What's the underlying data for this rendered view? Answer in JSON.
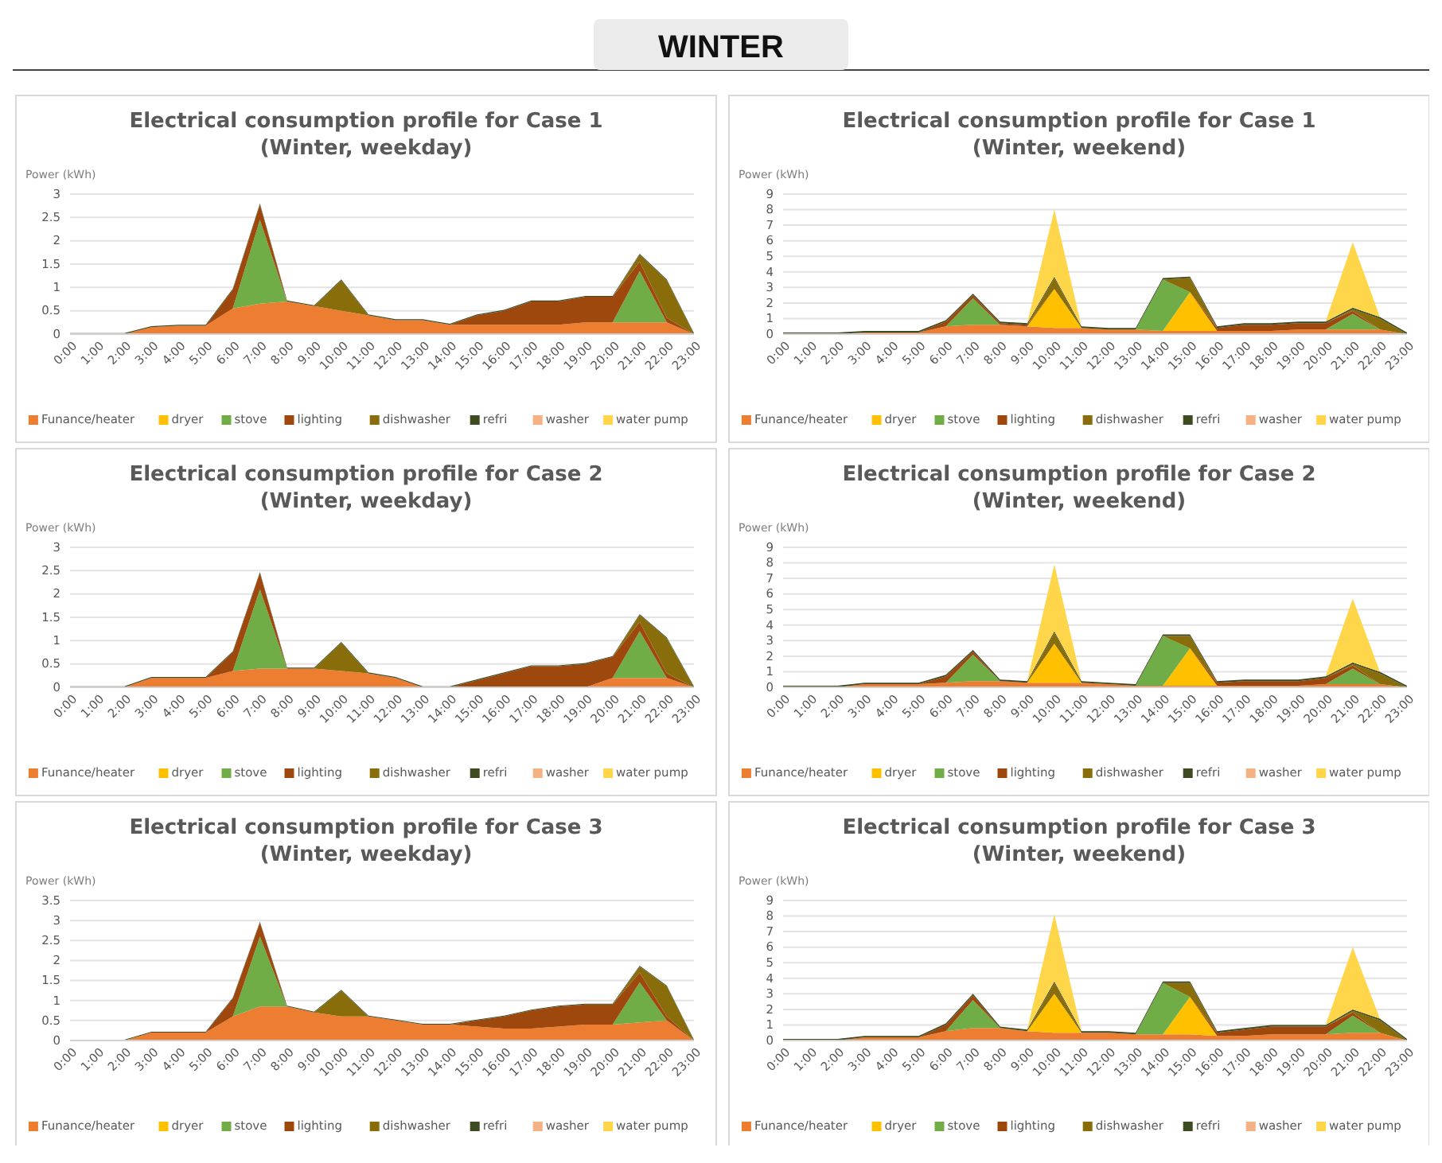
{
  "chart_data": [
    {
      "type": "other",
      "title": "WINTER"
    },
    {
      "type": "area",
      "stacked": true,
      "title": "Electrical consumption profile for Case 1",
      "subtitle": "(Winter, weekday)",
      "ylabel": "Power (kWh)",
      "legend": "bottom",
      "grid": "y",
      "ylim": [
        0,
        3
      ],
      "yticks": [
        0,
        0.5,
        1,
        1.5,
        2,
        2.5,
        3
      ],
      "categories": [
        "0:00",
        "1:00",
        "2:00",
        "3:00",
        "4:00",
        "5:00",
        "6:00",
        "7:00",
        "8:00",
        "9:00",
        "10:00",
        "11:00",
        "12:00",
        "13:00",
        "14:00",
        "15:00",
        "16:00",
        "17:00",
        "18:00",
        "19:00",
        "20:00",
        "21:00",
        "22:00",
        "23:00"
      ],
      "series": [
        {
          "name": "Funance/heater",
          "color": "#ed7d31",
          "values": [
            null,
            null,
            0,
            0.15,
            0.18,
            0.18,
            0.55,
            0.65,
            0.7,
            0.6,
            0.5,
            0.4,
            0.3,
            0.3,
            0.2,
            0.2,
            0.2,
            0.2,
            0.2,
            0.25,
            0.25,
            0.25,
            0.25,
            0
          ]
        },
        {
          "name": "dryer",
          "color": "#ffc000",
          "values": [
            null,
            null,
            null,
            null,
            null,
            null,
            null,
            null,
            null,
            null,
            null,
            null,
            null,
            null,
            null,
            null,
            null,
            null,
            null,
            null,
            null,
            null,
            null,
            null
          ]
        },
        {
          "name": "stove",
          "color": "#70ad47",
          "values": [
            null,
            null,
            null,
            null,
            null,
            null,
            0,
            1.8,
            0,
            null,
            null,
            null,
            null,
            null,
            null,
            null,
            null,
            null,
            null,
            null,
            0,
            1.1,
            0,
            null
          ]
        },
        {
          "name": "lighting",
          "color": "#9e480e",
          "values": [
            null,
            null,
            null,
            null,
            null,
            0,
            0.4,
            0.33,
            0,
            null,
            null,
            null,
            null,
            null,
            0,
            0.2,
            0.3,
            0.5,
            0.5,
            0.55,
            0.55,
            0.2,
            0.1,
            0
          ]
        },
        {
          "name": "dishwasher",
          "color": "#8a6d0b",
          "values": [
            null,
            null,
            null,
            null,
            null,
            null,
            null,
            null,
            null,
            0,
            0.65,
            0,
            null,
            null,
            null,
            null,
            null,
            null,
            null,
            null,
            0,
            0.15,
            0.8,
            0
          ]
        },
        {
          "name": "refri",
          "color": "#3d4a22",
          "values": [
            0.02,
            0.02,
            0.02,
            0.02,
            0.02,
            0.02,
            0.02,
            0.02,
            0.02,
            0.02,
            0.02,
            0.02,
            0.02,
            0.02,
            0.02,
            0.02,
            0.02,
            0.02,
            0.02,
            0.02,
            0.02,
            0.02,
            0.02,
            0.02
          ]
        },
        {
          "name": "washer",
          "color": "#f4b183",
          "values": [
            null,
            null,
            null,
            null,
            null,
            null,
            null,
            null,
            null,
            null,
            null,
            null,
            null,
            null,
            null,
            null,
            null,
            null,
            null,
            null,
            null,
            null,
            null,
            null
          ]
        },
        {
          "name": "water pump",
          "color": "#ffd54a",
          "values": [
            null,
            null,
            null,
            null,
            null,
            null,
            null,
            null,
            null,
            null,
            null,
            null,
            null,
            null,
            null,
            null,
            null,
            null,
            null,
            null,
            null,
            null,
            null,
            null
          ]
        }
      ]
    },
    {
      "type": "area",
      "stacked": true,
      "title": "Electrical consumption profile for Case 1",
      "subtitle": "(Winter, weekend)",
      "ylabel": "Power (kWh)",
      "legend": "bottom",
      "grid": "y",
      "ylim": [
        0,
        9
      ],
      "yticks": [
        0,
        1,
        2,
        3,
        4,
        5,
        6,
        7,
        8,
        9
      ],
      "categories": [
        "0:00",
        "1:00",
        "2:00",
        "3:00",
        "4:00",
        "5:00",
        "6:00",
        "7:00",
        "8:00",
        "9:00",
        "10:00",
        "11:00",
        "12:00",
        "13:00",
        "14:00",
        "15:00",
        "16:00",
        "17:00",
        "18:00",
        "19:00",
        "20:00",
        "21:00",
        "22:00",
        "23:00"
      ],
      "series": [
        {
          "name": "Funance/heater",
          "color": "#ed7d31",
          "values": [
            null,
            null,
            0,
            0.1,
            0.1,
            0.1,
            0.5,
            0.6,
            0.6,
            0.5,
            0.4,
            0.4,
            0.3,
            0.3,
            0.2,
            0.2,
            0.2,
            0.2,
            0.2,
            0.3,
            0.3,
            0.3,
            0.3,
            0
          ]
        },
        {
          "name": "dryer",
          "color": "#ffc000",
          "values": [
            null,
            null,
            null,
            null,
            null,
            null,
            null,
            null,
            null,
            0,
            2.5,
            0,
            null,
            null,
            0,
            2.5,
            0,
            null,
            null,
            null,
            null,
            null,
            null,
            null
          ]
        },
        {
          "name": "stove",
          "color": "#70ad47",
          "values": [
            null,
            null,
            null,
            null,
            null,
            null,
            0,
            1.7,
            0,
            null,
            null,
            null,
            null,
            0,
            3.3,
            0,
            null,
            null,
            null,
            null,
            0,
            1,
            0,
            null
          ]
        },
        {
          "name": "lighting",
          "color": "#9e480e",
          "values": [
            null,
            null,
            null,
            null,
            null,
            0,
            0.3,
            0.2,
            0.1,
            0.1,
            0,
            null,
            null,
            null,
            null,
            0,
            0.2,
            0.4,
            0.4,
            0.4,
            0.4,
            0.2,
            0,
            null
          ]
        },
        {
          "name": "dishwasher",
          "color": "#8a6d0b",
          "values": [
            null,
            null,
            null,
            null,
            null,
            null,
            null,
            null,
            null,
            0,
            0.7,
            0,
            null,
            null,
            0,
            0.9,
            0,
            null,
            null,
            null,
            0,
            0.1,
            0.7,
            0
          ]
        },
        {
          "name": "refri",
          "color": "#3d4a22",
          "values": [
            0.1,
            0.1,
            0.1,
            0.1,
            0.1,
            0.1,
            0.1,
            0.1,
            0.1,
            0.1,
            0.1,
            0.1,
            0.1,
            0.1,
            0.1,
            0.1,
            0.1,
            0.1,
            0.1,
            0.1,
            0.1,
            0.1,
            0.1,
            0.1
          ]
        },
        {
          "name": "washer",
          "color": "#f4b183",
          "values": [
            null,
            null,
            null,
            null,
            null,
            null,
            null,
            null,
            null,
            null,
            null,
            null,
            null,
            null,
            null,
            null,
            null,
            null,
            null,
            null,
            null,
            null,
            null,
            null
          ]
        },
        {
          "name": "water pump",
          "color": "#ffd54a",
          "values": [
            null,
            null,
            null,
            null,
            null,
            null,
            null,
            null,
            null,
            0,
            4.3,
            0,
            null,
            null,
            null,
            null,
            null,
            null,
            null,
            null,
            0,
            4.2,
            0,
            null
          ]
        }
      ]
    },
    {
      "type": "area",
      "stacked": true,
      "title": "Electrical consumption profile for Case 2",
      "subtitle": "(Winter, weekday)",
      "ylabel": "Power (kWh)",
      "legend": "bottom",
      "grid": "y",
      "ylim": [
        0,
        3
      ],
      "yticks": [
        0,
        0.5,
        1,
        1.5,
        2,
        2.5,
        3
      ],
      "categories": [
        "0:00",
        "1:00",
        "2:00",
        "3:00",
        "4:00",
        "5:00",
        "6:00",
        "7:00",
        "8:00",
        "9:00",
        "10:00",
        "11:00",
        "12:00",
        "13:00",
        "14:00",
        "15:00",
        "16:00",
        "17:00",
        "18:00",
        "19:00",
        "20:00",
        "21:00",
        "22:00",
        "23:00"
      ],
      "series": [
        {
          "name": "Funance/heater",
          "color": "#ed7d31",
          "values": [
            null,
            null,
            0,
            0.2,
            0.2,
            0.2,
            0.35,
            0.4,
            0.4,
            0.4,
            0.35,
            0.3,
            0.2,
            0,
            null,
            null,
            null,
            null,
            null,
            0,
            0.2,
            0.2,
            0.2,
            0
          ]
        },
        {
          "name": "dryer",
          "color": "#ffc000",
          "values": [
            null,
            null,
            null,
            null,
            null,
            null,
            null,
            null,
            null,
            null,
            null,
            null,
            null,
            null,
            null,
            null,
            null,
            null,
            null,
            null,
            null,
            null,
            null,
            null
          ]
        },
        {
          "name": "stove",
          "color": "#70ad47",
          "values": [
            null,
            null,
            null,
            null,
            null,
            null,
            0,
            1.7,
            0,
            null,
            null,
            null,
            null,
            null,
            null,
            null,
            null,
            null,
            null,
            null,
            0,
            1,
            0,
            null
          ]
        },
        {
          "name": "lighting",
          "color": "#9e480e",
          "values": [
            null,
            null,
            null,
            null,
            null,
            0,
            0.4,
            0.35,
            0,
            null,
            null,
            null,
            null,
            null,
            0,
            0.15,
            0.3,
            0.45,
            0.45,
            0.5,
            0.45,
            0.2,
            0.1,
            0
          ]
        },
        {
          "name": "dishwasher",
          "color": "#8a6d0b",
          "values": [
            null,
            null,
            null,
            null,
            null,
            null,
            null,
            null,
            null,
            0,
            0.6,
            0,
            null,
            null,
            null,
            null,
            null,
            null,
            null,
            null,
            0,
            0.15,
            0.75,
            0
          ]
        },
        {
          "name": "refri",
          "color": "#3d4a22",
          "values": [
            0.02,
            0.02,
            0.02,
            0.02,
            0.02,
            0.02,
            0.02,
            0.02,
            0.02,
            0.02,
            0.02,
            0.02,
            0.02,
            0.02,
            0.02,
            0.02,
            0.02,
            0.02,
            0.02,
            0.02,
            0.02,
            0.02,
            0.02,
            0.02
          ]
        },
        {
          "name": "washer",
          "color": "#f4b183",
          "values": [
            null,
            null,
            null,
            null,
            null,
            null,
            null,
            null,
            null,
            null,
            null,
            null,
            null,
            null,
            null,
            null,
            null,
            null,
            null,
            null,
            null,
            null,
            null,
            null
          ]
        },
        {
          "name": "water pump",
          "color": "#ffd54a",
          "values": [
            null,
            null,
            null,
            null,
            null,
            null,
            null,
            null,
            null,
            null,
            null,
            null,
            null,
            null,
            null,
            null,
            null,
            null,
            null,
            null,
            null,
            null,
            null,
            null
          ]
        }
      ]
    },
    {
      "type": "area",
      "stacked": true,
      "title": "Electrical consumption profile for Case 2",
      "subtitle": "(Winter, weekend)",
      "ylabel": "Power (kWh)",
      "legend": "bottom",
      "grid": "y",
      "ylim": [
        0,
        9
      ],
      "yticks": [
        0,
        1,
        2,
        3,
        4,
        5,
        6,
        7,
        8,
        9
      ],
      "categories": [
        "0:00",
        "1:00",
        "2:00",
        "3:00",
        "4:00",
        "5:00",
        "6:00",
        "7:00",
        "8:00",
        "9:00",
        "10:00",
        "11:00",
        "12:00",
        "13:00",
        "14:00",
        "15:00",
        "16:00",
        "17:00",
        "18:00",
        "19:00",
        "20:00",
        "21:00",
        "22:00",
        "23:00"
      ],
      "series": [
        {
          "name": "Funance/heater",
          "color": "#ed7d31",
          "values": [
            null,
            null,
            0,
            0.2,
            0.2,
            0.2,
            0.3,
            0.4,
            0.4,
            0.3,
            0.3,
            0.3,
            0.2,
            0.1,
            0.1,
            0.1,
            0.1,
            0.1,
            0.1,
            0.1,
            0.2,
            0.2,
            0.2,
            0
          ]
        },
        {
          "name": "dryer",
          "color": "#ffc000",
          "values": [
            null,
            null,
            null,
            null,
            null,
            null,
            null,
            null,
            null,
            0,
            2.5,
            0,
            null,
            null,
            0,
            2.4,
            0,
            null,
            null,
            null,
            null,
            null,
            null,
            null
          ]
        },
        {
          "name": "stove",
          "color": "#70ad47",
          "values": [
            null,
            null,
            null,
            null,
            null,
            null,
            0,
            1.7,
            0,
            null,
            null,
            null,
            null,
            0,
            3.2,
            0,
            null,
            null,
            null,
            null,
            0,
            1,
            0,
            null
          ]
        },
        {
          "name": "lighting",
          "color": "#9e480e",
          "values": [
            null,
            null,
            null,
            null,
            null,
            0,
            0.4,
            0.2,
            0,
            null,
            null,
            null,
            null,
            null,
            null,
            0,
            0.2,
            0.3,
            0.3,
            0.3,
            0.4,
            0.2,
            0,
            null
          ]
        },
        {
          "name": "dishwasher",
          "color": "#8a6d0b",
          "values": [
            null,
            null,
            null,
            null,
            null,
            null,
            null,
            null,
            null,
            0,
            0.7,
            0,
            null,
            null,
            0,
            0.8,
            0,
            null,
            null,
            null,
            0,
            0.1,
            0.7,
            0
          ]
        },
        {
          "name": "refri",
          "color": "#3d4a22",
          "values": [
            0.1,
            0.1,
            0.1,
            0.1,
            0.1,
            0.1,
            0.1,
            0.1,
            0.1,
            0.1,
            0.1,
            0.1,
            0.1,
            0.1,
            0.1,
            0.1,
            0.1,
            0.1,
            0.1,
            0.1,
            0.1,
            0.1,
            0.1,
            0.1
          ]
        },
        {
          "name": "washer",
          "color": "#f4b183",
          "values": [
            null,
            null,
            null,
            null,
            null,
            null,
            null,
            null,
            null,
            null,
            null,
            null,
            null,
            null,
            null,
            null,
            null,
            null,
            null,
            null,
            null,
            null,
            null,
            null
          ]
        },
        {
          "name": "water pump",
          "color": "#ffd54a",
          "values": [
            null,
            null,
            null,
            null,
            null,
            null,
            null,
            null,
            null,
            0,
            4.3,
            0,
            null,
            null,
            null,
            null,
            null,
            null,
            null,
            null,
            0,
            4.1,
            0,
            null
          ]
        }
      ]
    },
    {
      "type": "area",
      "stacked": true,
      "title": "Electrical consumption profile for Case 3",
      "subtitle": "(Winter, weekday)",
      "ylabel": "Power (kWh)",
      "legend": "bottom",
      "grid": "y",
      "ylim": [
        0,
        3.5
      ],
      "yticks": [
        0,
        0.5,
        1,
        1.5,
        2,
        2.5,
        3,
        3.5
      ],
      "categories": [
        "0:00",
        "1:00",
        "2:00",
        "3:00",
        "4:00",
        "5:00",
        "6:00",
        "7:00",
        "8:00",
        "9:00",
        "10:00",
        "11:00",
        "12:00",
        "13:00",
        "14:00",
        "15:00",
        "16:00",
        "17:00",
        "18:00",
        "19:00",
        "20:00",
        "21:00",
        "22:00",
        "23:00"
      ],
      "series": [
        {
          "name": "Funance/heater",
          "color": "#ed7d31",
          "values": [
            null,
            null,
            0,
            0.2,
            0.2,
            0.2,
            0.6,
            0.85,
            0.85,
            0.7,
            0.6,
            0.6,
            0.5,
            0.4,
            0.4,
            0.35,
            0.3,
            0.3,
            0.35,
            0.4,
            0.4,
            0.45,
            0.5,
            0
          ]
        },
        {
          "name": "dryer",
          "color": "#ffc000",
          "values": [
            null,
            null,
            null,
            null,
            null,
            null,
            null,
            null,
            null,
            null,
            null,
            null,
            null,
            null,
            null,
            null,
            null,
            null,
            null,
            null,
            null,
            null,
            null,
            null
          ]
        },
        {
          "name": "stove",
          "color": "#70ad47",
          "values": [
            null,
            null,
            null,
            null,
            null,
            null,
            0,
            1.75,
            0,
            null,
            null,
            null,
            null,
            null,
            null,
            null,
            null,
            null,
            null,
            null,
            0,
            1,
            0,
            null
          ]
        },
        {
          "name": "lighting",
          "color": "#9e480e",
          "values": [
            null,
            null,
            null,
            null,
            null,
            0,
            0.45,
            0.35,
            0,
            null,
            null,
            null,
            null,
            null,
            0,
            0.15,
            0.3,
            0.45,
            0.5,
            0.5,
            0.5,
            0.25,
            0.1,
            0
          ]
        },
        {
          "name": "dishwasher",
          "color": "#8a6d0b",
          "values": [
            null,
            null,
            null,
            null,
            null,
            null,
            null,
            null,
            null,
            0,
            0.65,
            0,
            null,
            null,
            null,
            null,
            null,
            null,
            null,
            null,
            0,
            0.15,
            0.75,
            0
          ]
        },
        {
          "name": "refri",
          "color": "#3d4a22",
          "values": [
            0.02,
            0.02,
            0.02,
            0.02,
            0.02,
            0.02,
            0.02,
            0.02,
            0.02,
            0.02,
            0.02,
            0.02,
            0.02,
            0.02,
            0.02,
            0.02,
            0.02,
            0.02,
            0.02,
            0.02,
            0.02,
            0.02,
            0.02,
            0.02
          ]
        },
        {
          "name": "washer",
          "color": "#f4b183",
          "values": [
            null,
            null,
            null,
            null,
            null,
            null,
            null,
            null,
            null,
            null,
            null,
            null,
            null,
            null,
            null,
            null,
            null,
            null,
            null,
            null,
            null,
            null,
            null,
            null
          ]
        },
        {
          "name": "water pump",
          "color": "#ffd54a",
          "values": [
            null,
            null,
            null,
            null,
            null,
            null,
            null,
            null,
            null,
            null,
            null,
            null,
            null,
            null,
            null,
            null,
            null,
            null,
            null,
            null,
            null,
            null,
            null,
            null
          ]
        }
      ]
    },
    {
      "type": "area",
      "stacked": true,
      "title": "Electrical consumption profile for Case 3",
      "subtitle": "(Winter, weekend)",
      "ylabel": "Power (kWh)",
      "legend": "bottom",
      "grid": "y",
      "ylim": [
        0,
        9
      ],
      "yticks": [
        0,
        1,
        2,
        3,
        4,
        5,
        6,
        7,
        8,
        9
      ],
      "categories": [
        "0:00",
        "1:00",
        "2:00",
        "3:00",
        "4:00",
        "5:00",
        "6:00",
        "7:00",
        "8:00",
        "9:00",
        "10:00",
        "11:00",
        "12:00",
        "13:00",
        "14:00",
        "15:00",
        "16:00",
        "17:00",
        "18:00",
        "19:00",
        "20:00",
        "21:00",
        "22:00",
        "23:00"
      ],
      "series": [
        {
          "name": "Funance/heater",
          "color": "#ed7d31",
          "values": [
            null,
            null,
            0,
            0.2,
            0.2,
            0.2,
            0.6,
            0.8,
            0.8,
            0.6,
            0.5,
            0.5,
            0.5,
            0.4,
            0.4,
            0.4,
            0.3,
            0.3,
            0.4,
            0.4,
            0.4,
            0.5,
            0.5,
            0
          ]
        },
        {
          "name": "dryer",
          "color": "#ffc000",
          "values": [
            null,
            null,
            null,
            null,
            null,
            null,
            null,
            null,
            null,
            0,
            2.5,
            0,
            null,
            null,
            0,
            2.4,
            0,
            null,
            null,
            null,
            null,
            null,
            null,
            null
          ]
        },
        {
          "name": "stove",
          "color": "#70ad47",
          "values": [
            null,
            null,
            null,
            null,
            null,
            null,
            0,
            1.8,
            0,
            null,
            null,
            null,
            null,
            0,
            3.3,
            0,
            null,
            null,
            null,
            null,
            0,
            1.1,
            0,
            null
          ]
        },
        {
          "name": "lighting",
          "color": "#9e480e",
          "values": [
            null,
            null,
            null,
            null,
            null,
            0,
            0.4,
            0.3,
            0,
            null,
            null,
            null,
            null,
            null,
            null,
            0,
            0.2,
            0.4,
            0.5,
            0.5,
            0.5,
            0.2,
            0,
            null
          ]
        },
        {
          "name": "dishwasher",
          "color": "#8a6d0b",
          "values": [
            null,
            null,
            null,
            null,
            null,
            null,
            null,
            null,
            null,
            0,
            0.7,
            0,
            null,
            null,
            0,
            0.9,
            0,
            null,
            null,
            null,
            0,
            0.1,
            0.8,
            0
          ]
        },
        {
          "name": "refri",
          "color": "#3d4a22",
          "values": [
            0.1,
            0.1,
            0.1,
            0.1,
            0.1,
            0.1,
            0.1,
            0.1,
            0.1,
            0.1,
            0.1,
            0.1,
            0.1,
            0.1,
            0.1,
            0.1,
            0.1,
            0.1,
            0.1,
            0.1,
            0.1,
            0.1,
            0.1,
            0.1
          ]
        },
        {
          "name": "washer",
          "color": "#f4b183",
          "values": [
            null,
            null,
            null,
            null,
            null,
            null,
            null,
            null,
            null,
            null,
            null,
            null,
            null,
            null,
            null,
            null,
            null,
            null,
            null,
            null,
            null,
            null,
            null,
            null
          ]
        },
        {
          "name": "water pump",
          "color": "#ffd54a",
          "values": [
            null,
            null,
            null,
            null,
            null,
            null,
            null,
            null,
            null,
            0,
            4.3,
            0,
            null,
            null,
            null,
            null,
            null,
            null,
            null,
            null,
            0,
            4,
            0,
            null
          ]
        }
      ]
    }
  ]
}
